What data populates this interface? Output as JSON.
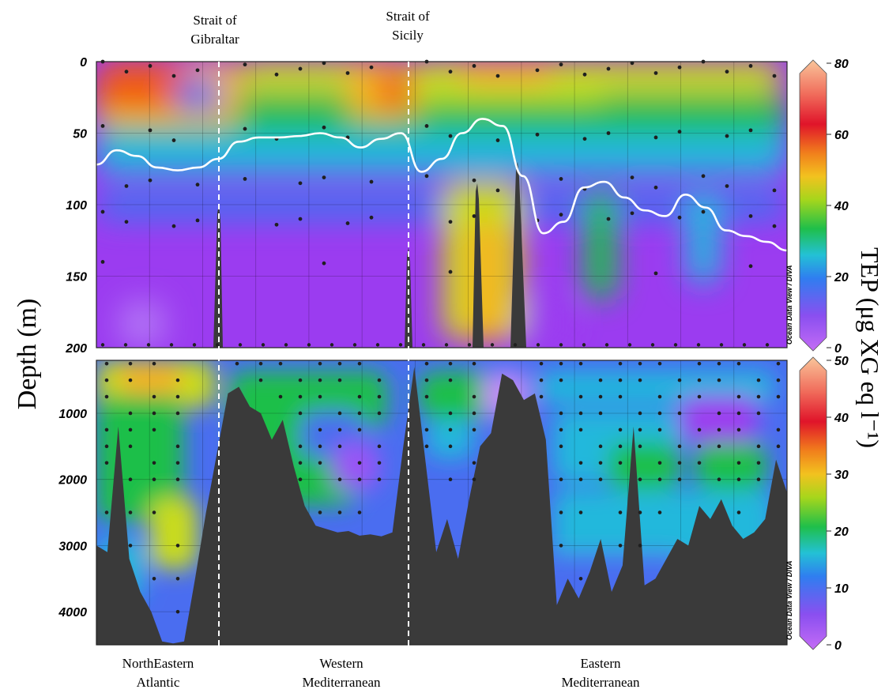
{
  "chart_data": [
    {
      "type": "heatmap",
      "panel": "upper",
      "ylabel": "Depth (m)",
      "y_ticks": [
        "0",
        "50",
        "100",
        "150",
        "200"
      ],
      "ylim": [
        0,
        200
      ],
      "y_inverted": true,
      "colorbar": {
        "ticks": [
          "0",
          "20",
          "40",
          "60",
          "80"
        ],
        "range": [
          0,
          80
        ],
        "label": "TEP (μg XG eq l⁻¹)"
      },
      "credit": "Ocean Data View / DIVA",
      "line_series": {
        "depth_m": [
          72,
          62,
          66,
          74,
          76,
          74,
          68,
          56,
          53,
          53,
          52,
          50,
          53,
          60,
          54,
          50,
          77,
          68,
          50,
          40,
          45,
          80,
          120,
          112,
          88,
          84,
          95,
          104,
          108,
          93,
          102,
          118,
          122,
          126,
          132
        ]
      },
      "bathymetry_peaks_m": [
        100,
        130,
        85,
        70
      ]
    },
    {
      "type": "heatmap",
      "panel": "lower",
      "y_ticks": [
        "1000",
        "2000",
        "3000",
        "4000"
      ],
      "ylim": [
        200,
        4500
      ],
      "y_inverted": true,
      "colorbar": {
        "ticks": [
          "0",
          "10",
          "20",
          "30",
          "40",
          "50"
        ],
        "range": [
          0,
          50
        ]
      },
      "credit": "Ocean Data View / DIVA",
      "bathymetry_depth_m": [
        3000,
        3100,
        1200,
        3200,
        3700,
        4000,
        4450,
        4480,
        4450,
        3500,
        2500,
        1600,
        700,
        600,
        900,
        1000,
        1400,
        1100,
        1800,
        2400,
        2700,
        2750,
        2800,
        2780,
        2850,
        2830,
        2860,
        2800,
        1500,
        300,
        1700,
        3100,
        2600,
        3200,
        2300,
        1500,
        1300,
        400,
        500,
        800,
        700,
        1400,
        3900,
        3500,
        3800,
        3400,
        2900,
        3700,
        3300,
        1200,
        3600,
        3500,
        3200,
        2900,
        3000,
        2400,
        2600,
        2300,
        2700,
        2900,
        2800,
        2600,
        1700,
        2200
      ]
    }
  ],
  "strait_labels": [
    {
      "line1": "Strait of",
      "line2": "Gibraltar"
    },
    {
      "line1": "Strait of",
      "line2": "Sicily"
    }
  ],
  "region_labels": [
    {
      "line1": "NorthEastern",
      "line2": "Atlantic"
    },
    {
      "line1": "Western",
      "line2": "Mediterranean"
    },
    {
      "line1": "Eastern",
      "line2": "Mediterranean"
    }
  ],
  "colors": {
    "bathymetry": "#3a3a3a",
    "isoline": "#ffffff",
    "sample_dot": "#1f1f1f",
    "scale": [
      "#9b3cf0",
      "#4a6df0",
      "#23b8dc",
      "#1fbf4a",
      "#c9dc1a",
      "#f5b321",
      "#f05a19",
      "#e0142a",
      "#f7c8a0"
    ]
  }
}
